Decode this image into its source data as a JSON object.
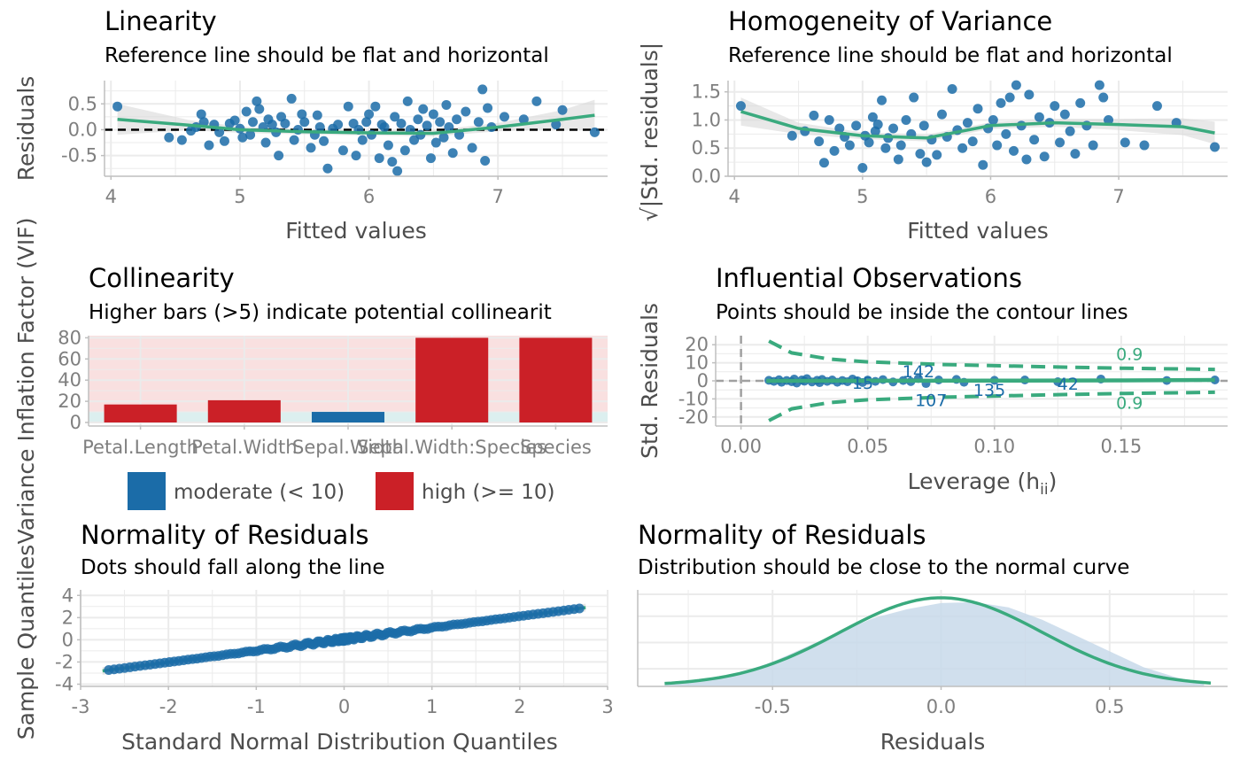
{
  "colors": {
    "point": "#1b6ca8",
    "fit": "#3aaa7e",
    "band": "#d9d9d9",
    "grid": "#ebebeb",
    "axis": "#bfbfbf",
    "high": "#cb2027",
    "moderate": "#1b6ca8",
    "bg_high": "#f9e0e0",
    "bg_low": "#dcefef",
    "density_fill": "#c8d9ea"
  },
  "chart_data": [
    {
      "id": "linearity",
      "type": "scatter",
      "title": "Linearity",
      "subtitle": "Reference line should be flat and horizontal",
      "xlabel": "Fitted values",
      "ylabel": "Residuals",
      "xlim": [
        3.95,
        7.85
      ],
      "ylim": [
        -0.9,
        0.95
      ],
      "xticks": [
        4,
        5,
        6,
        7
      ],
      "yticks": [
        -0.5,
        0.0,
        0.5
      ],
      "ytick_labels": [
        "-0.5",
        "0.0",
        "0.5"
      ],
      "reference_line": 0,
      "points": [
        [
          4.05,
          0.45
        ],
        [
          4.45,
          -0.15
        ],
        [
          4.55,
          -0.2
        ],
        [
          4.62,
          -0.02
        ],
        [
          4.66,
          0.05
        ],
        [
          4.7,
          0.3
        ],
        [
          4.72,
          0.15
        ],
        [
          4.76,
          -0.3
        ],
        [
          4.8,
          0.1
        ],
        [
          4.84,
          -0.05
        ],
        [
          4.88,
          -0.22
        ],
        [
          4.92,
          0.12
        ],
        [
          4.96,
          0.18
        ],
        [
          5.0,
          0.02
        ],
        [
          5.02,
          -0.15
        ],
        [
          5.05,
          0.35
        ],
        [
          5.08,
          -0.1
        ],
        [
          5.1,
          0.15
        ],
        [
          5.13,
          0.55
        ],
        [
          5.15,
          0.4
        ],
        [
          5.18,
          0.05
        ],
        [
          5.2,
          -0.25
        ],
        [
          5.22,
          0.2
        ],
        [
          5.25,
          0.1
        ],
        [
          5.28,
          -0.05
        ],
        [
          5.3,
          -0.5
        ],
        [
          5.32,
          0.25
        ],
        [
          5.35,
          0.12
        ],
        [
          5.4,
          0.6
        ],
        [
          5.42,
          -0.2
        ],
        [
          5.45,
          0.0
        ],
        [
          5.48,
          0.3
        ],
        [
          5.5,
          0.15
        ],
        [
          5.55,
          -0.35
        ],
        [
          5.58,
          -0.1
        ],
        [
          5.6,
          0.28
        ],
        [
          5.62,
          0.05
        ],
        [
          5.65,
          -0.22
        ],
        [
          5.68,
          -0.75
        ],
        [
          5.72,
          0.02
        ],
        [
          5.76,
          0.1
        ],
        [
          5.8,
          -0.4
        ],
        [
          5.84,
          0.45
        ],
        [
          5.88,
          0.12
        ],
        [
          5.9,
          -0.5
        ],
        [
          5.92,
          0.0
        ],
        [
          5.95,
          -0.2
        ],
        [
          5.98,
          0.15
        ],
        [
          6.0,
          0.3
        ],
        [
          6.02,
          -0.1
        ],
        [
          6.05,
          0.45
        ],
        [
          6.08,
          -0.55
        ],
        [
          6.1,
          0.1
        ],
        [
          6.12,
          0.05
        ],
        [
          6.15,
          -0.3
        ],
        [
          6.18,
          -0.62
        ],
        [
          6.2,
          0.25
        ],
        [
          6.22,
          -0.8
        ],
        [
          6.25,
          0.12
        ],
        [
          6.28,
          -0.4
        ],
        [
          6.3,
          0.55
        ],
        [
          6.32,
          0.0
        ],
        [
          6.35,
          -0.2
        ],
        [
          6.38,
          0.2
        ],
        [
          6.4,
          -0.1
        ],
        [
          6.42,
          0.4
        ],
        [
          6.45,
          0.08
        ],
        [
          6.48,
          -0.55
        ],
        [
          6.5,
          0.3
        ],
        [
          6.52,
          -0.25
        ],
        [
          6.55,
          0.15
        ],
        [
          6.58,
          -0.15
        ],
        [
          6.6,
          0.48
        ],
        [
          6.62,
          0.05
        ],
        [
          6.65,
          -0.45
        ],
        [
          6.68,
          0.2
        ],
        [
          6.7,
          -0.1
        ],
        [
          6.75,
          0.35
        ],
        [
          6.8,
          -0.35
        ],
        [
          6.85,
          0.15
        ],
        [
          6.88,
          0.78
        ],
        [
          6.9,
          -0.6
        ],
        [
          6.92,
          0.42
        ],
        [
          6.95,
          0.05
        ],
        [
          7.05,
          0.25
        ],
        [
          7.2,
          0.2
        ],
        [
          7.3,
          0.55
        ],
        [
          7.45,
          0.1
        ],
        [
          7.5,
          0.38
        ],
        [
          7.75,
          -0.05
        ]
      ],
      "fit_curve": [
        [
          4.05,
          0.2
        ],
        [
          4.6,
          0.09
        ],
        [
          5.0,
          0.0
        ],
        [
          5.5,
          -0.04
        ],
        [
          6.0,
          -0.06
        ],
        [
          6.5,
          -0.07
        ],
        [
          7.0,
          0.05
        ],
        [
          7.5,
          0.2
        ],
        [
          7.75,
          0.28
        ]
      ],
      "band_halfwidth": [
        [
          4.05,
          0.3
        ],
        [
          4.6,
          0.1
        ],
        [
          5.0,
          0.06
        ],
        [
          5.5,
          0.05
        ],
        [
          6.0,
          0.05
        ],
        [
          6.5,
          0.06
        ],
        [
          7.0,
          0.08
        ],
        [
          7.5,
          0.18
        ],
        [
          7.75,
          0.3
        ]
      ]
    },
    {
      "id": "homogeneity",
      "type": "scatter",
      "title": "Homogeneity of Variance",
      "subtitle": "Reference line should be flat and horizontal",
      "xlabel": "Fitted values",
      "ylabel": "√|Std. residuals|",
      "xlim": [
        3.95,
        7.85
      ],
      "ylim": [
        0.0,
        1.7
      ],
      "xticks": [
        4,
        5,
        6,
        7
      ],
      "yticks": [
        0.0,
        0.5,
        1.0,
        1.5
      ],
      "ytick_labels": [
        "0.0",
        "0.5",
        "1.0",
        "1.5"
      ],
      "points": [
        [
          4.05,
          1.25
        ],
        [
          4.45,
          0.72
        ],
        [
          4.55,
          0.8
        ],
        [
          4.62,
          1.08
        ],
        [
          4.66,
          0.62
        ],
        [
          4.7,
          0.24
        ],
        [
          4.74,
          1.0
        ],
        [
          4.78,
          0.45
        ],
        [
          4.82,
          0.85
        ],
        [
          4.86,
          0.7
        ],
        [
          4.9,
          0.55
        ],
        [
          4.95,
          0.9
        ],
        [
          5.0,
          0.15
        ],
        [
          5.02,
          0.72
        ],
        [
          5.05,
          0.6
        ],
        [
          5.08,
          1.05
        ],
        [
          5.1,
          0.8
        ],
        [
          5.12,
          0.92
        ],
        [
          5.15,
          1.35
        ],
        [
          5.18,
          0.5
        ],
        [
          5.2,
          0.68
        ],
        [
          5.24,
          0.85
        ],
        [
          5.28,
          0.3
        ],
        [
          5.3,
          0.55
        ],
        [
          5.34,
          1.0
        ],
        [
          5.38,
          0.75
        ],
        [
          5.4,
          1.4
        ],
        [
          5.45,
          0.4
        ],
        [
          5.48,
          0.9
        ],
        [
          5.5,
          0.25
        ],
        [
          5.54,
          0.65
        ],
        [
          5.58,
          0.38
        ],
        [
          5.62,
          1.1
        ],
        [
          5.66,
          0.7
        ],
        [
          5.7,
          1.55
        ],
        [
          5.74,
          0.82
        ],
        [
          5.78,
          0.5
        ],
        [
          5.82,
          0.95
        ],
        [
          5.86,
          0.62
        ],
        [
          5.9,
          1.2
        ],
        [
          5.94,
          0.2
        ],
        [
          5.98,
          0.85
        ],
        [
          6.02,
          1.0
        ],
        [
          6.05,
          0.55
        ],
        [
          6.08,
          1.3
        ],
        [
          6.12,
          0.75
        ],
        [
          6.15,
          1.4
        ],
        [
          6.18,
          0.45
        ],
        [
          6.2,
          1.62
        ],
        [
          6.24,
          0.9
        ],
        [
          6.28,
          0.3
        ],
        [
          6.3,
          1.45
        ],
        [
          6.34,
          0.65
        ],
        [
          6.38,
          1.05
        ],
        [
          6.42,
          0.35
        ],
        [
          6.46,
          0.95
        ],
        [
          6.5,
          1.25
        ],
        [
          6.54,
          0.6
        ],
        [
          6.58,
          1.1
        ],
        [
          6.62,
          0.8
        ],
        [
          6.66,
          0.4
        ],
        [
          6.7,
          1.3
        ],
        [
          6.75,
          0.9
        ],
        [
          6.8,
          0.55
        ],
        [
          6.85,
          1.62
        ],
        [
          6.88,
          1.4
        ],
        [
          6.92,
          1.0
        ],
        [
          7.05,
          0.6
        ],
        [
          7.2,
          0.55
        ],
        [
          7.3,
          1.25
        ],
        [
          7.45,
          0.95
        ],
        [
          7.75,
          0.52
        ]
      ],
      "fit_curve": [
        [
          4.05,
          1.15
        ],
        [
          4.5,
          0.85
        ],
        [
          5.0,
          0.72
        ],
        [
          5.5,
          0.68
        ],
        [
          6.0,
          0.9
        ],
        [
          6.5,
          0.95
        ],
        [
          7.0,
          0.92
        ],
        [
          7.5,
          0.88
        ],
        [
          7.75,
          0.77
        ]
      ],
      "band_halfwidth": [
        [
          4.05,
          0.25
        ],
        [
          4.5,
          0.1
        ],
        [
          5.0,
          0.06
        ],
        [
          5.5,
          0.06
        ],
        [
          6.0,
          0.06
        ],
        [
          6.5,
          0.07
        ],
        [
          7.0,
          0.1
        ],
        [
          7.5,
          0.15
        ],
        [
          7.75,
          0.2
        ]
      ]
    },
    {
      "id": "collinearity",
      "type": "bar",
      "title": "Collinearity",
      "subtitle": "Higher bars (>5) indicate potential collinearit",
      "ylabel": "Variance Inflation Factor (VIF)",
      "ylim": [
        0,
        82
      ],
      "yticks": [
        0,
        20,
        40,
        60,
        80
      ],
      "ytick_labels": [
        "0",
        "20",
        "40",
        "60",
        "80"
      ],
      "categories": [
        "Petal.Length",
        "Petal.Width",
        "Sepal.Width",
        "Sepal.Width:Species",
        "Species"
      ],
      "values": [
        17,
        21,
        10,
        80,
        80
      ],
      "groups": [
        "high",
        "high",
        "moderate",
        "high",
        "high"
      ],
      "legend": [
        {
          "key": "moderate",
          "label": "moderate (< 10)"
        },
        {
          "key": "high",
          "label": "high (>= 10)"
        }
      ],
      "legend_position": "bottom"
    },
    {
      "id": "influential",
      "type": "scatter",
      "title": "Influential Observations",
      "subtitle": "Points should be inside the contour lines",
      "xlabel": "Leverage (h",
      "xlabel_sub": "ii",
      "xlabel_end": ")",
      "ylabel": "Std. Residuals",
      "xlim": [
        -0.01,
        0.192
      ],
      "ylim": [
        -25,
        25
      ],
      "xticks": [
        0.0,
        0.05,
        0.1,
        0.15
      ],
      "xtick_labels": [
        "0.00",
        "0.05",
        "0.10",
        "0.15"
      ],
      "yticks": [
        -20,
        -10,
        0,
        10,
        20
      ],
      "ytick_labels": [
        "-20",
        "-10",
        "0",
        "10",
        "20"
      ],
      "points": [
        [
          0.011,
          0.3
        ],
        [
          0.013,
          -0.3
        ],
        [
          0.015,
          0.6
        ],
        [
          0.016,
          -0.8
        ],
        [
          0.018,
          0.2
        ],
        [
          0.02,
          -0.5
        ],
        [
          0.021,
          1.0
        ],
        [
          0.022,
          -1.2
        ],
        [
          0.024,
          0.5
        ],
        [
          0.025,
          -0.2
        ],
        [
          0.026,
          1.2
        ],
        [
          0.028,
          -0.6
        ],
        [
          0.03,
          0.3
        ],
        [
          0.031,
          -1.0
        ],
        [
          0.032,
          0.8
        ],
        [
          0.034,
          -0.3
        ],
        [
          0.036,
          0.5
        ],
        [
          0.038,
          -0.8
        ],
        [
          0.04,
          0.2
        ],
        [
          0.042,
          -0.5
        ],
        [
          0.044,
          1.0
        ],
        [
          0.046,
          0.0
        ],
        [
          0.048,
          -0.9
        ],
        [
          0.05,
          0.4
        ],
        [
          0.053,
          -0.3
        ],
        [
          0.056,
          0.7
        ],
        [
          0.06,
          -0.6
        ],
        [
          0.064,
          0.2
        ],
        [
          0.067,
          -0.4
        ],
        [
          0.07,
          1.3
        ],
        [
          0.073,
          -1.5
        ],
        [
          0.078,
          0.5
        ],
        [
          0.085,
          0.8
        ],
        [
          0.088,
          -0.8
        ],
        [
          0.1,
          0.3
        ],
        [
          0.112,
          0.5
        ],
        [
          0.125,
          -0.5
        ],
        [
          0.142,
          1.0
        ],
        [
          0.168,
          0.2
        ],
        [
          0.187,
          0.5
        ]
      ],
      "fit_curve": [
        [
          0.01,
          0.0
        ],
        [
          0.05,
          0.05
        ],
        [
          0.1,
          0.1
        ],
        [
          0.15,
          0.25
        ],
        [
          0.187,
          0.5
        ]
      ],
      "contour_positive": [
        [
          0.011,
          22
        ],
        [
          0.02,
          15.5
        ],
        [
          0.035,
          12
        ],
        [
          0.05,
          10.5
        ],
        [
          0.08,
          9
        ],
        [
          0.12,
          7.8
        ],
        [
          0.15,
          7
        ],
        [
          0.187,
          6.3
        ]
      ],
      "contour_negative": [
        [
          0.011,
          -22
        ],
        [
          0.02,
          -15.5
        ],
        [
          0.035,
          -12
        ],
        [
          0.05,
          -10.5
        ],
        [
          0.08,
          -9
        ],
        [
          0.12,
          -7.8
        ],
        [
          0.15,
          -7
        ],
        [
          0.187,
          -6.3
        ]
      ],
      "contour_labels": [
        {
          "text": "0.9",
          "x": 0.148,
          "y": 15
        },
        {
          "text": "0.9",
          "x": 0.148,
          "y": -12
        }
      ],
      "point_labels": [
        {
          "text": "142",
          "x": 0.07,
          "y": 5.5
        },
        {
          "text": "15",
          "x": 0.048,
          "y": -1
        },
        {
          "text": "135",
          "x": 0.098,
          "y": -5
        },
        {
          "text": "42",
          "x": 0.129,
          "y": -1.5
        },
        {
          "text": "107",
          "x": 0.075,
          "y": -10.5
        }
      ]
    },
    {
      "id": "qq",
      "type": "scatter",
      "title": "Normality of Residuals",
      "subtitle": "Dots should fall along the line",
      "xlabel": "Standard Normal Distribution Quantiles",
      "ylabel": "Sample Quantiles",
      "xlim": [
        -3,
        3
      ],
      "ylim": [
        -4.2,
        4.5
      ],
      "xticks": [
        -3,
        -2,
        -1,
        0,
        1,
        2,
        3
      ],
      "xtick_labels": [
        "-3",
        "-2",
        "-1",
        "0",
        "1",
        "2",
        "3"
      ],
      "yticks": [
        -4,
        -2,
        0,
        2,
        4
      ],
      "ytick_labels": [
        "-4",
        "-2",
        "0",
        "2",
        "4"
      ],
      "quantile_range": [
        -2.71,
        2.71
      ],
      "fit_line": [
        [
          -2.75,
          -2.8
        ],
        [
          2.75,
          2.9
        ]
      ]
    },
    {
      "id": "density",
      "type": "area",
      "title": "Normality of Residuals",
      "subtitle": "Distribution should be close to the normal curve",
      "xlabel": "Residuals",
      "xlim": [
        -0.9,
        0.85
      ],
      "xticks": [
        -0.5,
        0.0,
        0.5
      ],
      "xtick_labels": [
        "-0.5",
        "0.0",
        "0.5"
      ],
      "residual_density": [
        [
          -0.82,
          0.02
        ],
        [
          -0.7,
          0.07
        ],
        [
          -0.6,
          0.15
        ],
        [
          -0.5,
          0.28
        ],
        [
          -0.4,
          0.45
        ],
        [
          -0.3,
          0.62
        ],
        [
          -0.2,
          0.78
        ],
        [
          -0.1,
          0.88
        ],
        [
          0.0,
          0.95
        ],
        [
          0.1,
          0.96
        ],
        [
          0.2,
          0.9
        ],
        [
          0.3,
          0.76
        ],
        [
          0.4,
          0.58
        ],
        [
          0.5,
          0.4
        ],
        [
          0.6,
          0.22
        ],
        [
          0.7,
          0.1
        ],
        [
          0.78,
          0.04
        ]
      ],
      "normal_curve": {
        "mean": 0.0,
        "sd": 0.3,
        "xrange": [
          -0.82,
          0.8
        ]
      }
    }
  ]
}
